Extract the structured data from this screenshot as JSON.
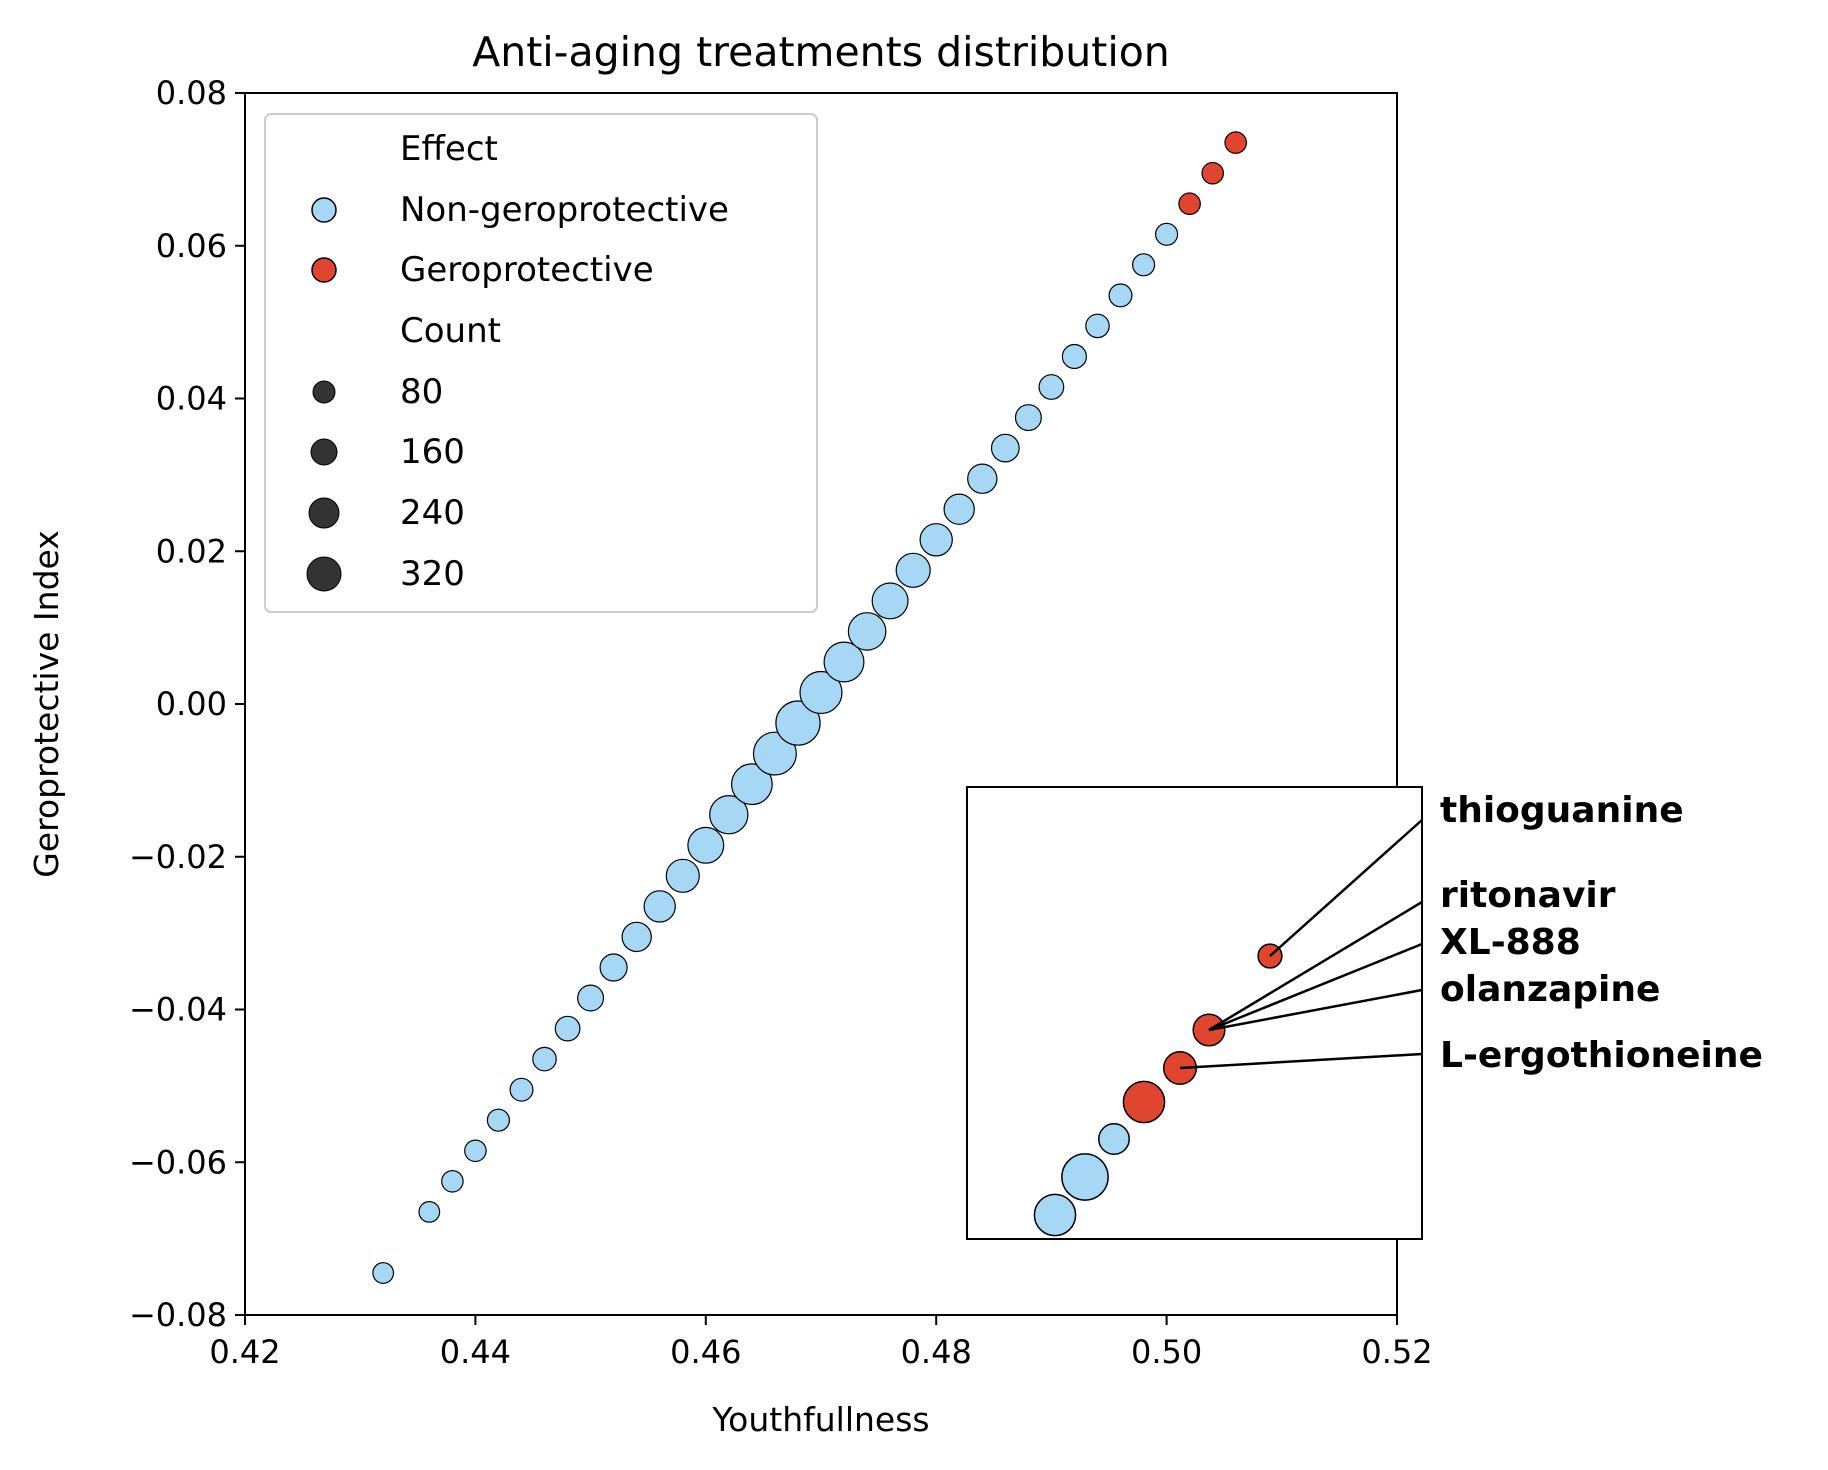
{
  "chart_data": {
    "type": "scatter",
    "title": "Anti-aging treatments distribution",
    "xlabel": "Youthfullness",
    "ylabel": "Geroprotective Index",
    "xlim": [
      0.42,
      0.52
    ],
    "ylim": [
      -0.08,
      0.08
    ],
    "x_ticks": [
      "0.42",
      "0.44",
      "0.46",
      "0.48",
      "0.50",
      "0.52"
    ],
    "y_ticks": [
      "−0.08",
      "−0.06",
      "−0.04",
      "−0.02",
      "0.00",
      "0.02",
      "0.04",
      "0.06",
      "0.08"
    ],
    "grid": false,
    "colors": {
      "Non-geroprotective": "#a6d8f5",
      "Geroprotective": "#e0462f",
      "edge": "#000000",
      "legend_marker": "#333333"
    },
    "legend": {
      "placement": "upper-left",
      "hue_title": "Effect",
      "hue_entries": [
        "Non-geroprotective",
        "Geroprotective"
      ],
      "size_title": "Count",
      "size_entries": [
        "80",
        "160",
        "240",
        "320"
      ]
    },
    "series": [
      {
        "name": "Non-geroprotective",
        "points": [
          {
            "x": 0.432,
            "y": -0.0745,
            "count": 70
          },
          {
            "x": 0.436,
            "y": -0.0665,
            "count": 70
          },
          {
            "x": 0.438,
            "y": -0.0625,
            "count": 75
          },
          {
            "x": 0.44,
            "y": -0.0585,
            "count": 75
          },
          {
            "x": 0.442,
            "y": -0.0545,
            "count": 80
          },
          {
            "x": 0.444,
            "y": -0.0505,
            "count": 85
          },
          {
            "x": 0.446,
            "y": -0.0465,
            "count": 90
          },
          {
            "x": 0.448,
            "y": -0.0425,
            "count": 100
          },
          {
            "x": 0.45,
            "y": -0.0385,
            "count": 110
          },
          {
            "x": 0.452,
            "y": -0.0345,
            "count": 120
          },
          {
            "x": 0.454,
            "y": -0.0305,
            "count": 140
          },
          {
            "x": 0.456,
            "y": -0.0265,
            "count": 160
          },
          {
            "x": 0.458,
            "y": -0.0225,
            "count": 180
          },
          {
            "x": 0.46,
            "y": -0.0185,
            "count": 210
          },
          {
            "x": 0.462,
            "y": -0.0145,
            "count": 240
          },
          {
            "x": 0.464,
            "y": -0.0105,
            "count": 270
          },
          {
            "x": 0.466,
            "y": -0.0065,
            "count": 300
          },
          {
            "x": 0.468,
            "y": -0.0025,
            "count": 320
          },
          {
            "x": 0.47,
            "y": 0.0015,
            "count": 290
          },
          {
            "x": 0.472,
            "y": 0.0055,
            "count": 260
          },
          {
            "x": 0.474,
            "y": 0.0095,
            "count": 230
          },
          {
            "x": 0.476,
            "y": 0.0135,
            "count": 210
          },
          {
            "x": 0.478,
            "y": 0.0175,
            "count": 190
          },
          {
            "x": 0.48,
            "y": 0.0215,
            "count": 170
          },
          {
            "x": 0.482,
            "y": 0.0255,
            "count": 150
          },
          {
            "x": 0.484,
            "y": 0.0295,
            "count": 140
          },
          {
            "x": 0.486,
            "y": 0.0335,
            "count": 125
          },
          {
            "x": 0.488,
            "y": 0.0375,
            "count": 110
          },
          {
            "x": 0.49,
            "y": 0.0415,
            "count": 100
          },
          {
            "x": 0.492,
            "y": 0.0455,
            "count": 95
          },
          {
            "x": 0.494,
            "y": 0.0495,
            "count": 90
          },
          {
            "x": 0.496,
            "y": 0.0535,
            "count": 85
          },
          {
            "x": 0.498,
            "y": 0.0575,
            "count": 80
          },
          {
            "x": 0.5,
            "y": 0.0615,
            "count": 80
          }
        ]
      },
      {
        "name": "Geroprotective",
        "points": [
          {
            "x": 0.502,
            "y": 0.0655,
            "count": 75
          },
          {
            "x": 0.504,
            "y": 0.0695,
            "count": 75
          },
          {
            "x": 0.506,
            "y": 0.0735,
            "count": 75
          }
        ]
      }
    ],
    "inset": {
      "points": [
        {
          "effect": "Non-geroprotective",
          "count": 240
        },
        {
          "effect": "Non-geroprotective",
          "count": 300
        },
        {
          "effect": "Non-geroprotective",
          "count": 130
        },
        {
          "effect": "Geroprotective",
          "count": 240
        },
        {
          "effect": "Geroprotective",
          "count": 150
        },
        {
          "effect": "Geroprotective",
          "count": 140
        },
        {
          "effect": "Geroprotective",
          "count": 80
        }
      ]
    },
    "annotations": [
      "thioguanine",
      "ritonavir",
      "XL-888",
      "olanzapine",
      "L-ergothioneine"
    ]
  }
}
